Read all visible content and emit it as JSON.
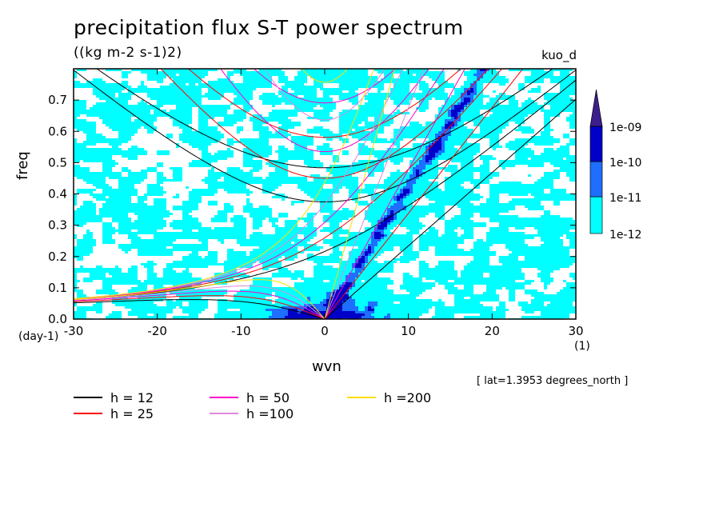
{
  "chart_data": {
    "type": "heatmap",
    "title": "precipitation flux S-T power spectrum",
    "subtitle": "((kg m-2 s-1)2)",
    "dataset": "kuo_d",
    "xlabel": "wvn",
    "ylabel": "freq",
    "x_units": "(1)",
    "y_units": "(day-1)",
    "xlim": [
      -30,
      30
    ],
    "ylim": [
      0,
      0.8
    ],
    "x_ticks": [
      "-30",
      "-20",
      "-10",
      "0",
      "10",
      "20",
      "30"
    ],
    "y_ticks": [
      "0.0",
      "0.1",
      "0.2",
      "0.3",
      "0.4",
      "0.5",
      "0.6",
      "0.7"
    ],
    "annotation": "[ lat=1.3953 degrees_north ]",
    "colorbar": {
      "levels": [
        "1e-12",
        "1e-11",
        "1e-10",
        "1e-09"
      ],
      "colors": [
        "#00ffff",
        "#1e6eff",
        "#0000c8",
        "#3c1e8c"
      ]
    },
    "dispersion_curves": [
      {
        "label": "h = 12",
        "h": 12,
        "color": "#000000"
      },
      {
        "label": "h = 25",
        "h": 25,
        "color": "#ff0000"
      },
      {
        "label": "h = 50",
        "h": 50,
        "color": "#ff00cc"
      },
      {
        "label": "h =100",
        "h": 100,
        "color": "#dd88dd"
      },
      {
        "label": "h =200",
        "h": 200,
        "color": "#ffdd00"
      }
    ]
  }
}
